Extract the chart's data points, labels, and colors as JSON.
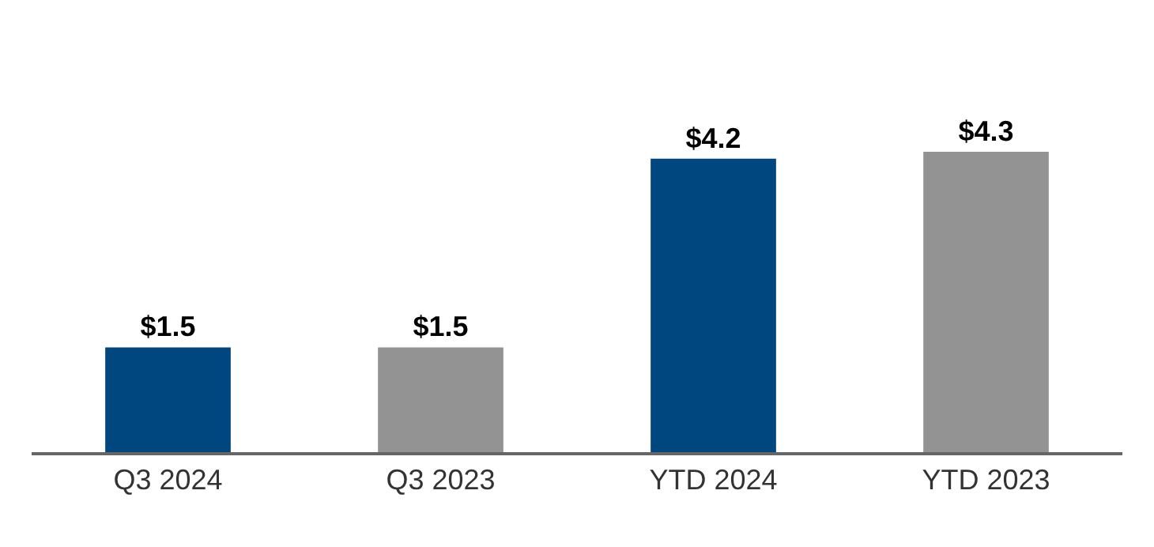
{
  "chart_data": {
    "type": "bar",
    "categories": [
      "Q3 2024",
      "Q3 2023",
      "YTD 2024",
      "YTD 2023"
    ],
    "values": [
      1.5,
      1.5,
      4.2,
      4.3
    ],
    "colors": [
      "#00477f",
      "#939393",
      "#00477f",
      "#939393"
    ],
    "value_labels": [
      "$1.5",
      "$1.5",
      "$4.2",
      "$4.3"
    ],
    "legend": false
  }
}
